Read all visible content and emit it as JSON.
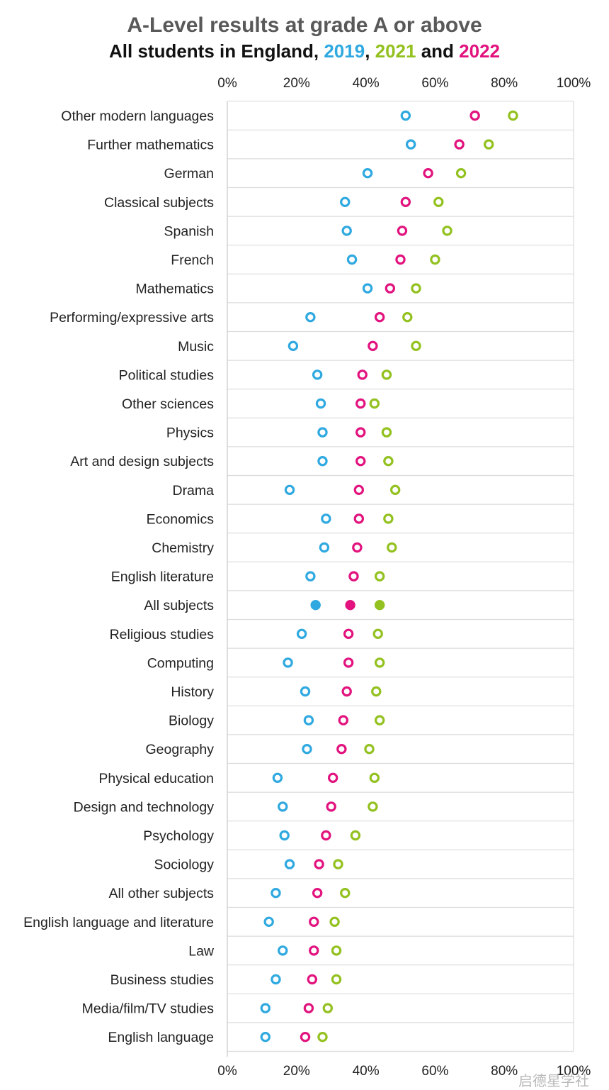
{
  "header": {
    "title": "A-Level results at grade A or above",
    "subtitle_prefix": "All students in England, ",
    "sep1": ", ",
    "sep2": " and ",
    "year1": "2019",
    "year2": "2021",
    "year3": "2022"
  },
  "watermark": "启德星学社",
  "colors": {
    "2019": "#2fa9e0",
    "2021": "#93c11f",
    "2022": "#e2137e"
  },
  "chart_data": {
    "type": "scatter",
    "title": "A-Level results at grade A or above",
    "subtitle": "All students in England, 2019, 2021 and 2022",
    "xlabel": "",
    "ylabel": "",
    "xlim": [
      0,
      100
    ],
    "x_ticks": [
      "0%",
      "20%",
      "40%",
      "60%",
      "80%",
      "100%"
    ],
    "x_tick_values": [
      0,
      20,
      40,
      60,
      80,
      100
    ],
    "categories": [
      "Other modern languages",
      "Further mathematics",
      "German",
      "Classical subjects",
      "Spanish",
      "French",
      "Mathematics",
      "Performing/expressive arts",
      "Music",
      "Political studies",
      "Other sciences",
      "Physics",
      "Art and design subjects",
      "Drama",
      "Economics",
      "Chemistry",
      "English literature",
      "All subjects",
      "Religious studies",
      "Computing",
      "History",
      "Biology",
      "Geography",
      "Physical education",
      "Design and technology",
      "Psychology",
      "Sociology",
      "All other subjects",
      "English language and literature",
      "Law",
      "Business studies",
      "Media/film/TV studies",
      "English language"
    ],
    "highlight_category": "All subjects",
    "series": [
      {
        "name": "2019",
        "color": "#2fa9e0",
        "values": [
          51.5,
          53,
          40.5,
          34,
          34.5,
          36,
          40.5,
          24,
          19,
          26,
          27,
          27.5,
          27.5,
          18,
          28.5,
          28,
          24,
          25.5,
          21.5,
          17.5,
          22.5,
          23.5,
          23,
          14.5,
          16,
          16.5,
          18,
          14,
          12,
          16,
          14,
          11,
          11
        ]
      },
      {
        "name": "2021",
        "color": "#93c11f",
        "values": [
          82.5,
          75.5,
          67.5,
          61,
          63.5,
          60,
          54.5,
          52,
          54.5,
          46,
          42.5,
          46,
          46.5,
          48.5,
          46.5,
          47.5,
          44,
          44,
          43.5,
          44,
          43,
          44,
          41,
          42.5,
          42,
          37,
          32,
          34,
          31,
          31.5,
          31.5,
          29,
          27.5
        ]
      },
      {
        "name": "2022",
        "color": "#e2137e",
        "values": [
          71.5,
          67,
          58,
          51.5,
          50.5,
          50,
          47,
          44,
          42,
          39,
          38.5,
          38.5,
          38.5,
          38,
          38,
          37.5,
          36.5,
          35.5,
          35,
          35,
          34.5,
          33.5,
          33,
          30.5,
          30,
          28.5,
          26.5,
          26,
          25,
          25,
          24.5,
          23.5,
          22.5
        ]
      }
    ]
  }
}
